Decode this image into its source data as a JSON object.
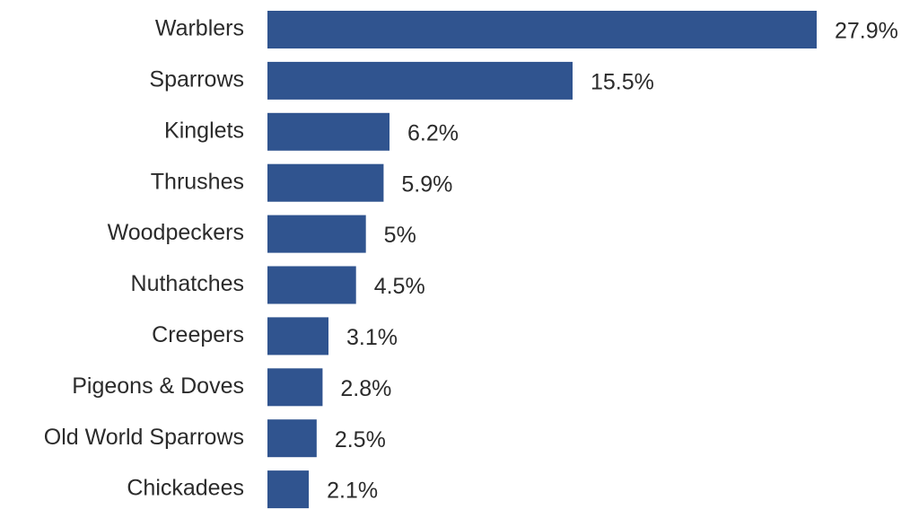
{
  "chart_data": {
    "type": "bar",
    "orientation": "horizontal",
    "categories": [
      "Warblers",
      "Sparrows",
      "Kinglets",
      "Thrushes",
      "Woodpeckers",
      "Nuthatches",
      "Creepers",
      "Pigeons & Doves",
      "Old World Sparrows",
      "Chickadees"
    ],
    "values": [
      27.9,
      15.5,
      6.2,
      5.9,
      5,
      4.5,
      3.1,
      2.8,
      2.5,
      2.1
    ],
    "value_labels": [
      "27.9%",
      "15.5%",
      "6.2%",
      "5.9%",
      "5%",
      "4.5%",
      "3.1%",
      "2.8%",
      "2.5%",
      "2.1%"
    ],
    "color": "#30548f"
  }
}
